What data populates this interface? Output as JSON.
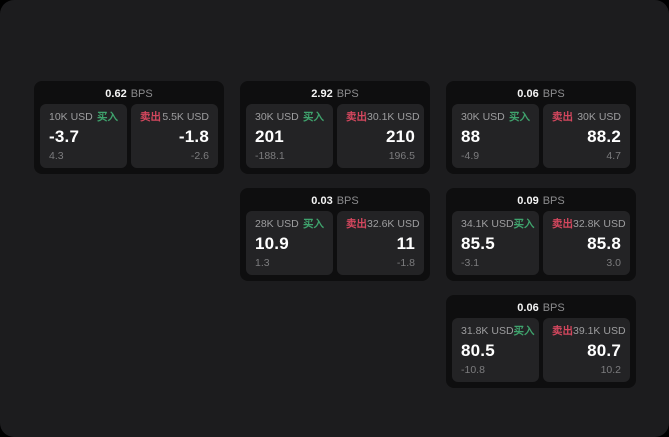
{
  "labels": {
    "bps_unit": "BPS",
    "buy": "买入",
    "sell": "卖出"
  },
  "colors": {
    "page_bg": "#1c1c1e",
    "card_bg": "#0e0e0f",
    "panel_bg": "#232325",
    "buy_accent": "#3fa36d",
    "sell_accent": "#d4475e"
  },
  "cards": [
    {
      "bps": "0.62",
      "buy": {
        "size": "10K USD",
        "value": "-3.7",
        "change": "4.3"
      },
      "sell": {
        "size": "5.5K USD",
        "value": "-1.8",
        "change": "-2.6"
      }
    },
    {
      "bps": "2.92",
      "buy": {
        "size": "30K USD",
        "value": "201",
        "change": "-188.1"
      },
      "sell": {
        "size": "30.1K USD",
        "value": "210",
        "change": "196.5"
      }
    },
    {
      "bps": "0.06",
      "buy": {
        "size": "30K USD",
        "value": "88",
        "change": "-4.9"
      },
      "sell": {
        "size": "30K USD",
        "value": "88.2",
        "change": "4.7"
      }
    },
    {
      "bps": "0.03",
      "buy": {
        "size": "28K USD",
        "value": "10.9",
        "change": "1.3"
      },
      "sell": {
        "size": "32.6K USD",
        "value": "11",
        "change": "-1.8"
      }
    },
    {
      "bps": "0.09",
      "buy": {
        "size": "34.1K USD",
        "value": "85.5",
        "change": "-3.1"
      },
      "sell": {
        "size": "32.8K USD",
        "value": "85.8",
        "change": "3.0"
      }
    },
    {
      "bps": "0.06",
      "buy": {
        "size": "31.8K USD",
        "value": "80.5",
        "change": "-10.8"
      },
      "sell": {
        "size": "39.1K USD",
        "value": "80.7",
        "change": "10.2"
      }
    }
  ]
}
